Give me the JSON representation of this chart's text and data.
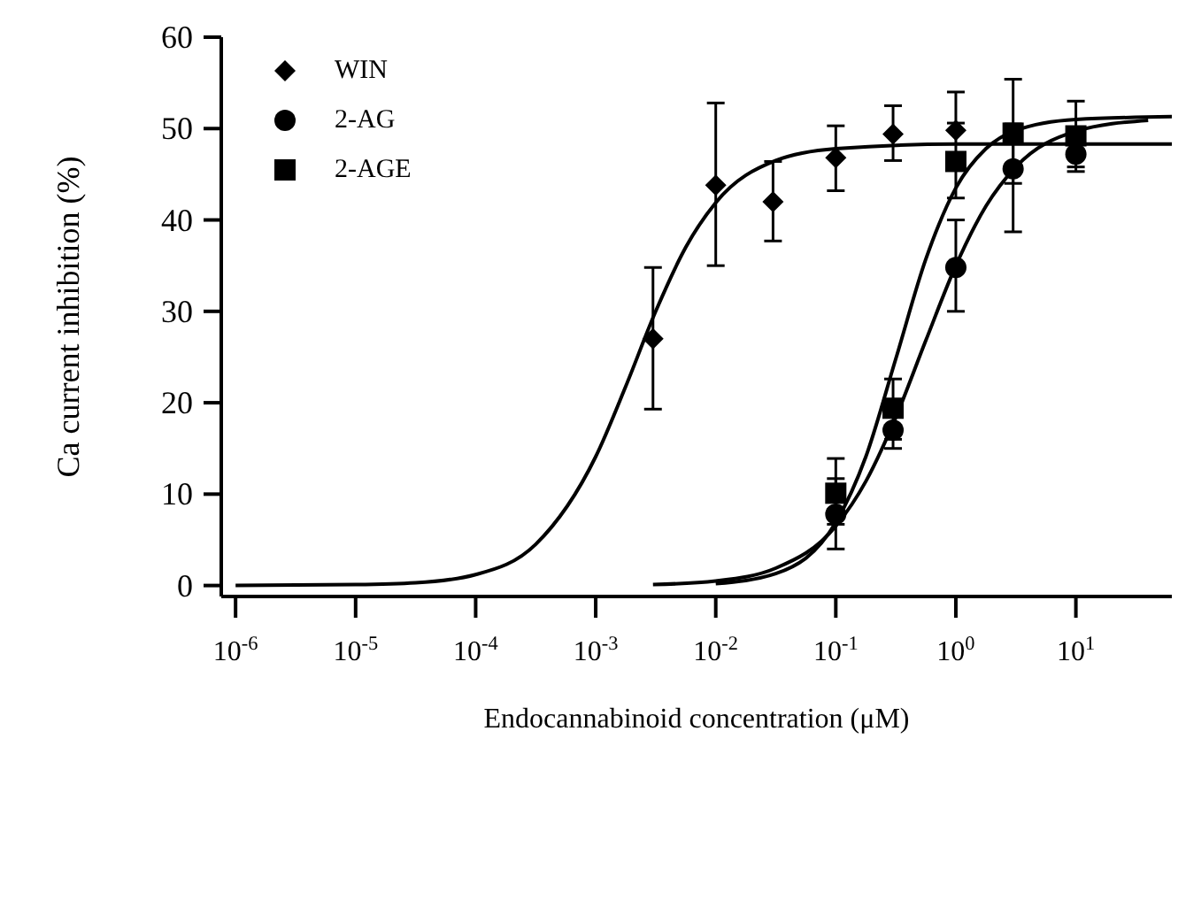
{
  "chart_data": {
    "type": "scatter",
    "xlabel": "Endocannabinoid concentration (μM)",
    "ylabel": "Ca current inhibition (%)",
    "log": "x",
    "xlim": [
      7.6e-07,
      63
    ],
    "xticks": [
      {
        "value": 1e-06,
        "label": "10$^{-6}$"
      },
      {
        "value": 1e-05,
        "label": "10$^{-5}$"
      },
      {
        "value": 0.0001,
        "label": "10$^{-4}$"
      },
      {
        "value": 0.001,
        "label": "10$^{-3}$"
      },
      {
        "value": 0.01,
        "label": "10$^{-2}$"
      },
      {
        "value": 0.1,
        "label": "10$^{-1}$"
      },
      {
        "value": 1,
        "label": "10$^{0}$"
      },
      {
        "value": 10,
        "label": "10$^{1}$"
      }
    ],
    "ylim": [
      -1.2,
      60
    ],
    "yticks": [
      0,
      10,
      20,
      30,
      40,
      50,
      60
    ],
    "grid": false,
    "legend": "top left",
    "series": [
      {
        "name": "WIN",
        "type": "scatter",
        "marker": "diamond",
        "color": "#000000",
        "x": [
          0.003,
          0.01,
          0.03,
          0.1,
          0.3,
          1
        ],
        "values": [
          27,
          43.8,
          42,
          46.8,
          49.4,
          49.8
        ],
        "errors": [
          [
            19.3,
            34.8
          ],
          [
            35,
            52.8
          ],
          [
            37.7,
            46.4
          ],
          [
            43.2,
            50.3
          ],
          [
            46.5,
            52.5
          ],
          [
            49.8,
            54
          ]
        ]
      },
      {
        "name": "2-AG",
        "type": "scatter",
        "marker": "circle",
        "color": "#000000",
        "x": [
          0.1,
          0.3,
          1,
          3,
          10
        ],
        "values": [
          7.8,
          17,
          34.8,
          45.6,
          47.2
        ],
        "errors": [
          [
            4,
            11.7
          ],
          [
            15,
            17
          ],
          [
            30,
            40
          ],
          [
            38.7,
            50.5
          ],
          [
            45.3,
            47.2
          ]
        ]
      },
      {
        "name": "2-AGE",
        "type": "scatter",
        "marker": "square",
        "color": "#000000",
        "x": [
          0.1,
          0.3,
          1,
          3,
          10
        ],
        "values": [
          10.1,
          19.4,
          46.4,
          49.5,
          49.2
        ],
        "errors": [
          [
            6.7,
            13.9
          ],
          [
            16,
            22.6
          ],
          [
            42.4,
            50.6
          ],
          [
            44,
            55.4
          ],
          [
            45.8,
            53
          ]
        ]
      },
      {
        "type": "line",
        "marker": "none",
        "color": "#000000",
        "x": [
          1e-06,
          1e-05,
          3.16e-05,
          0.0001,
          0.000316,
          0.001,
          0.00178,
          0.00316,
          0.00562,
          0.01,
          0.0316,
          0.1,
          1,
          63
        ],
        "values": [
          0,
          0.1,
          0.3,
          1.2,
          4.5,
          14.1,
          21.8,
          30,
          37,
          41.9,
          46.5,
          47.8,
          48.3,
          48.3
        ]
      },
      {
        "type": "line",
        "marker": "none",
        "color": "#000000",
        "x": [
          0.003,
          0.01,
          0.0316,
          0.1,
          0.178,
          0.316,
          0.562,
          1,
          1.78,
          3.16,
          10,
          40
        ],
        "values": [
          0.1,
          0.5,
          1.9,
          6.5,
          11.4,
          18.4,
          26.8,
          35,
          41.5,
          45.8,
          49.7,
          50.9
        ]
      },
      {
        "type": "line",
        "marker": "none",
        "color": "#000000",
        "x": [
          0.01,
          0.0316,
          0.1,
          0.178,
          0.316,
          0.562,
          1,
          1.78,
          3.16,
          10,
          63
        ],
        "values": [
          0.2,
          1.3,
          6.9,
          14.1,
          24.8,
          35.7,
          43.5,
          47.8,
          49.8,
          51,
          51.3
        ]
      }
    ]
  }
}
